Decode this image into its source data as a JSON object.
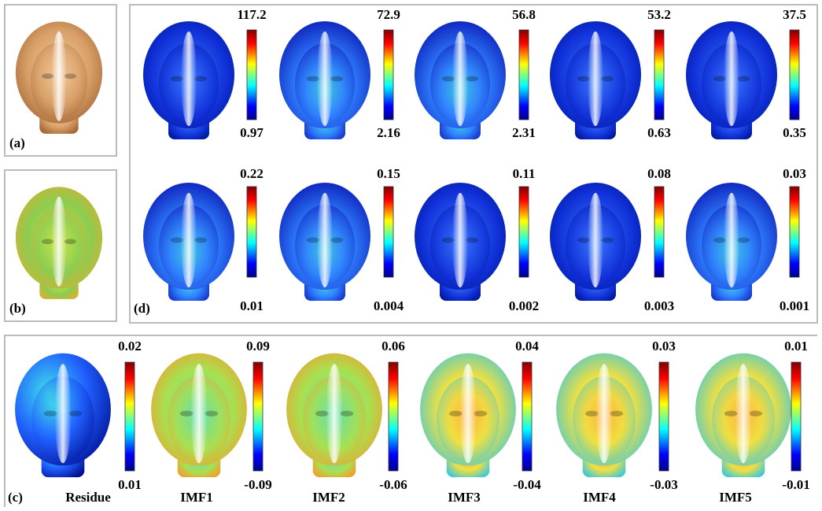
{
  "panel_a": {
    "label": "(a)"
  },
  "panel_b": {
    "label": "(b)"
  },
  "panel_d": {
    "label": "(d)",
    "rows": [
      [
        {
          "max": "117.2",
          "min": "0.97"
        },
        {
          "max": "72.9",
          "min": "2.16"
        },
        {
          "max": "56.8",
          "min": "2.31"
        },
        {
          "max": "53.2",
          "min": "0.63"
        },
        {
          "max": "37.5",
          "min": "0.35"
        }
      ],
      [
        {
          "max": "0.22",
          "min": "0.01"
        },
        {
          "max": "0.15",
          "min": "0.004"
        },
        {
          "max": "0.11",
          "min": "0.002"
        },
        {
          "max": "0.08",
          "min": "0.003"
        },
        {
          "max": "0.03",
          "min": "0.001"
        }
      ]
    ]
  },
  "panel_c": {
    "label": "(c)",
    "items": [
      {
        "name": "Residue",
        "max": "0.02",
        "min": "0.01"
      },
      {
        "name": "IMF1",
        "max": "0.09",
        "min": "-0.09"
      },
      {
        "name": "IMF2",
        "max": "0.06",
        "min": "-0.06"
      },
      {
        "name": "IMF3",
        "max": "0.04",
        "min": "-0.04"
      },
      {
        "name": "IMF4",
        "max": "0.03",
        "min": "-0.03"
      },
      {
        "name": "IMF5",
        "max": "0.01",
        "min": "-0.01"
      }
    ]
  }
}
